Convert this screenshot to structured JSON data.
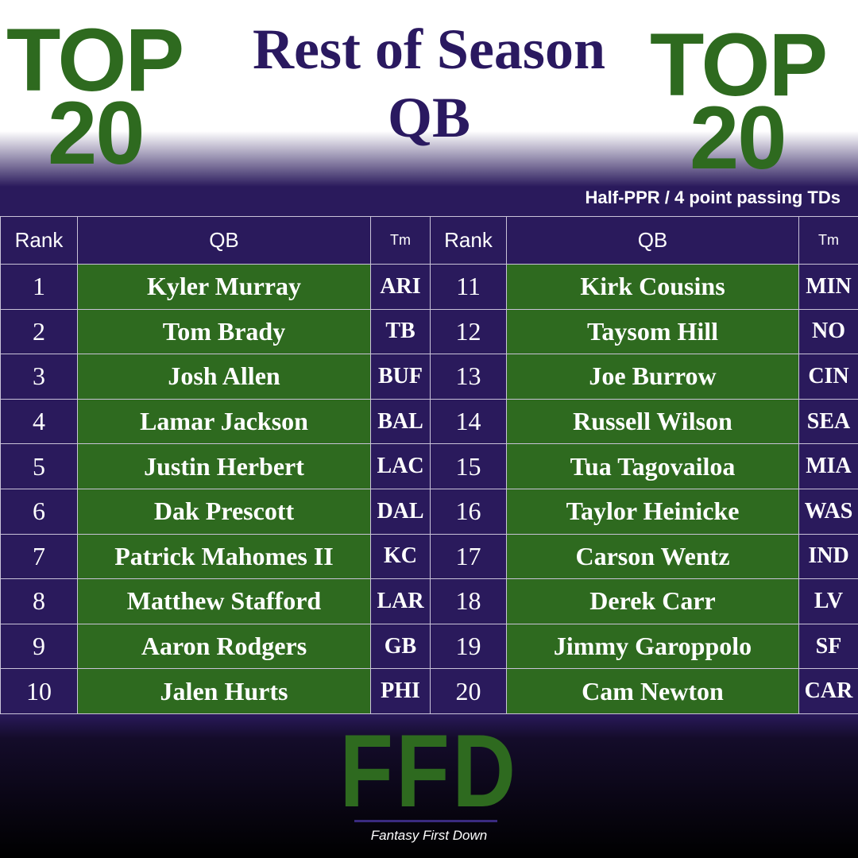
{
  "header": {
    "left_top": "TOP",
    "left_number": "20",
    "right_top": "TOP",
    "right_number": "20",
    "title": "Rest of Season",
    "position": "QB",
    "subtitle": "Half-PPR / 4 point passing TDs"
  },
  "table": {
    "columns": [
      "Rank",
      "QB",
      "Tm",
      "Rank",
      "QB",
      "Tm"
    ],
    "rows": [
      [
        "1",
        "Kyler Murray",
        "ARI",
        "11",
        "Kirk Cousins",
        "MIN"
      ],
      [
        "2",
        "Tom Brady",
        "TB",
        "12",
        "Taysom Hill",
        "NO"
      ],
      [
        "3",
        "Josh Allen",
        "BUF",
        "13",
        "Joe Burrow",
        "CIN"
      ],
      [
        "4",
        "Lamar Jackson",
        "BAL",
        "14",
        "Russell Wilson",
        "SEA"
      ],
      [
        "5",
        "Justin Herbert",
        "LAC",
        "15",
        "Tua Tagovailoa",
        "MIA"
      ],
      [
        "6",
        "Dak Prescott",
        "DAL",
        "16",
        "Taylor Heinicke",
        "WAS"
      ],
      [
        "7",
        "Patrick Mahomes II",
        "KC",
        "17",
        "Carson Wentz",
        "IND"
      ],
      [
        "8",
        "Matthew Stafford",
        "LAR",
        "18",
        "Derek Carr",
        "LV"
      ],
      [
        "9",
        "Aaron Rodgers",
        "GB",
        "19",
        "Jimmy Garoppolo",
        "SF"
      ],
      [
        "10",
        "Jalen Hurts",
        "PHI",
        "20",
        "Cam Newton",
        "CAR"
      ]
    ]
  },
  "footer": {
    "logo": "FFD",
    "tagline": "Fantasy First Down"
  }
}
